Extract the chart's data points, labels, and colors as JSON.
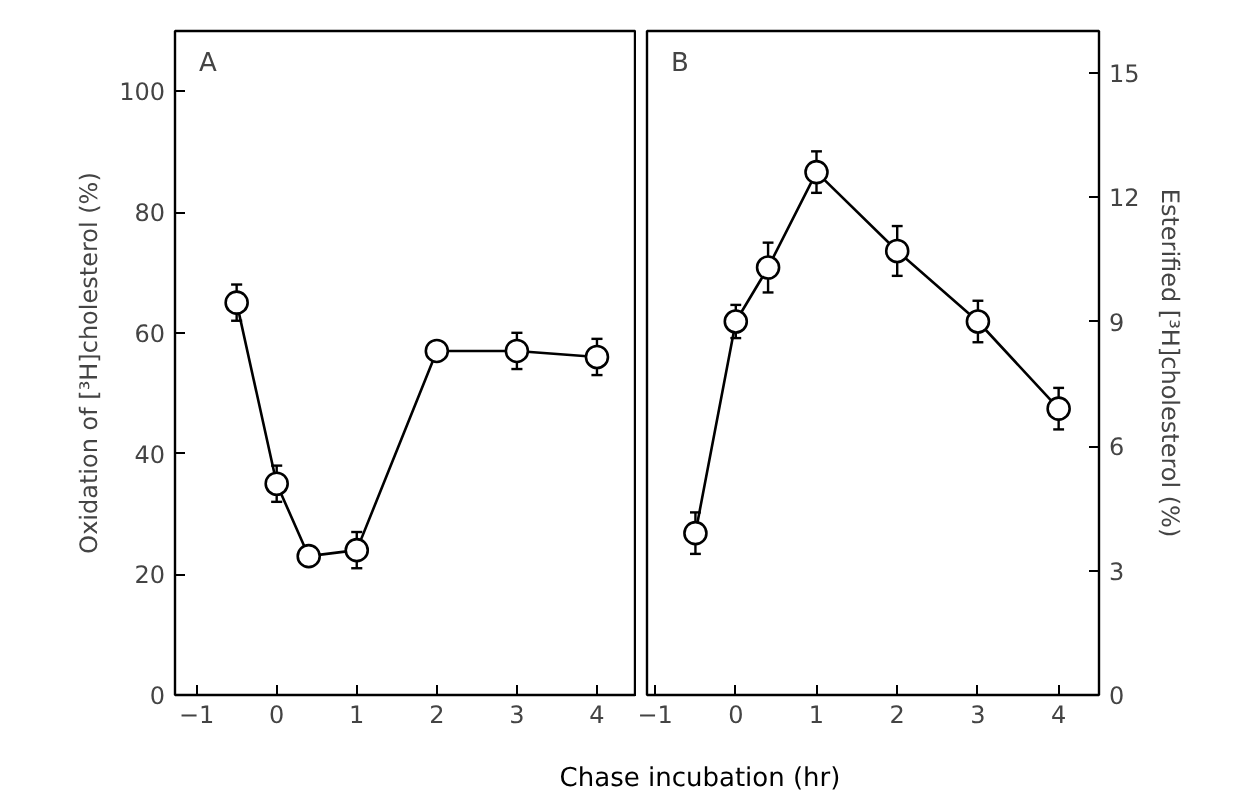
{
  "chart_data": [
    {
      "type": "line",
      "xlabel": "Chase incubation (hr)",
      "ylabel": "Oxidation of [³H]cholesterol (%)",
      "annotations": [
        "A"
      ],
      "x": [
        -0.5,
        0,
        0.4,
        1,
        2,
        3,
        4
      ],
      "series": [
        {
          "color": "#000000",
          "values": [
            65,
            35,
            23,
            24,
            57,
            57,
            56
          ],
          "errors": [
            3,
            3,
            1.5,
            3,
            1.5,
            3,
            3
          ]
        }
      ],
      "xlim": [
        -1.27,
        4.5
      ],
      "xticks": [
        -1,
        0,
        1,
        2,
        3,
        4
      ],
      "ylim": [
        0,
        110
      ],
      "yticks": [
        0,
        20,
        40,
        60,
        80,
        100
      ],
      "marker": "circle",
      "line_style": "solid",
      "grid": false
    },
    {
      "type": "line",
      "ylabel": "Esterified [³H]cholesterol (%)",
      "annotations": [
        "B"
      ],
      "x": [
        -0.5,
        0,
        0.4,
        1,
        2,
        3,
        4
      ],
      "series": [
        {
          "color": "#000000",
          "values": [
            3.9,
            9.0,
            10.3,
            12.6,
            10.7,
            9.0,
            6.9
          ],
          "errors": [
            0.5,
            0.4,
            0.6,
            0.5,
            0.6,
            0.5,
            0.5
          ]
        }
      ],
      "xlim": [
        -1.1,
        4.5
      ],
      "xticks": [
        -1,
        0,
        1,
        2,
        3,
        4
      ],
      "ylim": [
        0,
        16
      ],
      "yticks": [
        0,
        3,
        6,
        9,
        12,
        15
      ],
      "marker": "circle",
      "line_style": "solid",
      "grid": false
    }
  ]
}
